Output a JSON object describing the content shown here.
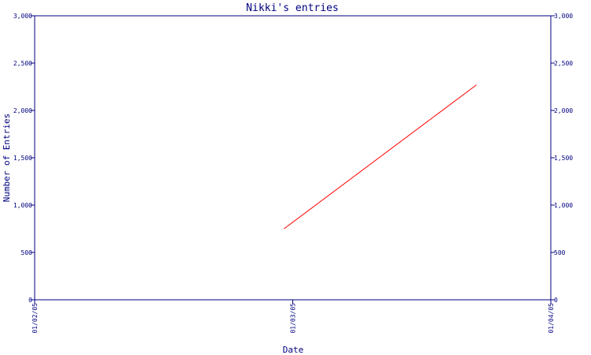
{
  "chart_data": {
    "type": "line",
    "title": "Nikki's entries",
    "xlabel": "Date",
    "ylabel": "Number of Entries",
    "x_ticks": [
      "01/02/05",
      "01/03/05",
      "01/04/05"
    ],
    "y_ticks": [
      "0",
      "500",
      "1,000",
      "1,500",
      "2,000",
      "2,500",
      "3,000"
    ],
    "ylim": [
      0,
      3000
    ],
    "xlim": [
      "01/02/05",
      "01/04/05"
    ],
    "series": [
      {
        "x": [
          "01/02/05 + 28.5d",
          "01/02/05 + 50.5d"
        ],
        "y": [
          750,
          2270
        ],
        "color": "#ff0000"
      }
    ],
    "grid": false,
    "axis_color": "#000080"
  }
}
